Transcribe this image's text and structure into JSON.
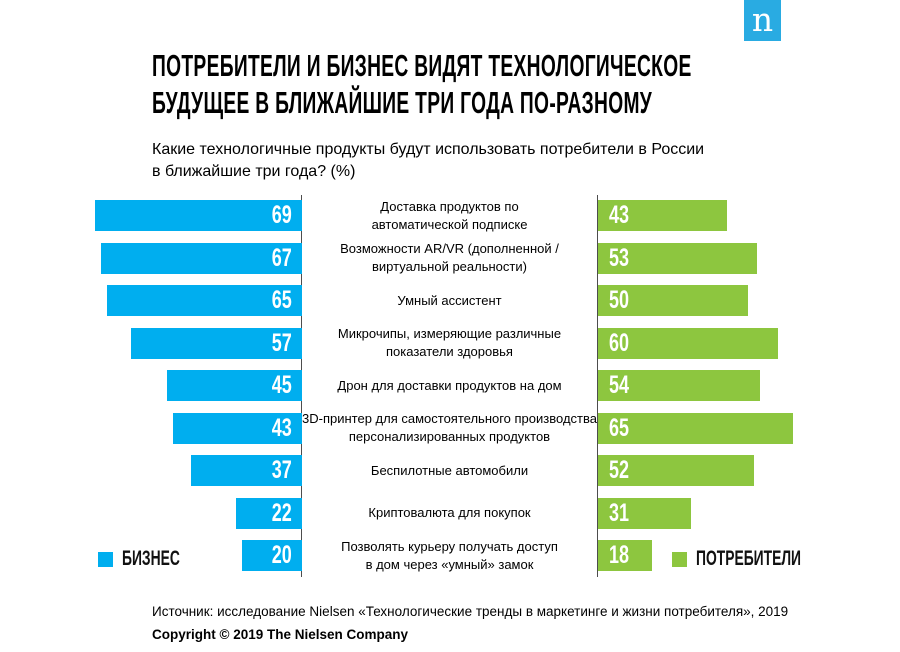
{
  "logo": {
    "letter": "n"
  },
  "header": {
    "title": "ПОТРЕБИТЕЛИ И БИЗНЕС ВИДЯТ ТЕХНОЛОГИЧЕСКОЕ\nБУДУЩЕЕ В БЛИЖАЙШИЕ ТРИ ГОДА ПО-РАЗНОМУ",
    "subtitle": "Какие технологичные продукты будут использовать потребители в России\nв ближайшие три года? (%)"
  },
  "chart_data": {
    "type": "bar",
    "layout": "horizontal-diverging",
    "title": "Какие технологичные продукты будут использовать потребители в России в ближайшие три года? (%)",
    "unit": "%",
    "value_range": [
      0,
      69
    ],
    "grid": false,
    "categories": [
      "Доставка продуктов по\nавтоматической подписке",
      "Возможности AR/VR (дополненной /\nвиртуальной реальности)",
      "Умный ассистент",
      "Микрочипы, измеряющие различные\nпоказатели здоровья",
      "Дрон для доставки продуктов на дом",
      "3D-принтер для самостоятельного производства\nперсонализированных продуктов",
      "Беспилотные автомобили",
      "Криптовалюта для покупок",
      "Позволять курьеру получать доступ\nв дом через «умный» замок"
    ],
    "series": [
      {
        "name": "БИЗНЕС",
        "side": "left",
        "color": "#00AEEF",
        "values": [
          69,
          67,
          65,
          57,
          45,
          43,
          37,
          22,
          20
        ]
      },
      {
        "name": "ПОТРЕБИТЕЛИ",
        "side": "right",
        "color": "#8DC63F",
        "values": [
          43,
          53,
          50,
          60,
          54,
          65,
          52,
          31,
          18
        ]
      }
    ],
    "legend_position": "bottom-row-inline"
  },
  "legend": {
    "business": "БИЗНЕС",
    "consumers": "ПОТРЕБИТЕЛИ"
  },
  "footer": {
    "source": "Источник: исследование Nielsen «Технологические тренды в маркетинге и жизни потребителя», 2019",
    "copyright": "Copyright © 2019 The Nielsen Company"
  },
  "colors": {
    "business": "#00AEEF",
    "consumers": "#8DC63F",
    "logo": "#29ABE2",
    "axis": "#4D4D4D"
  }
}
